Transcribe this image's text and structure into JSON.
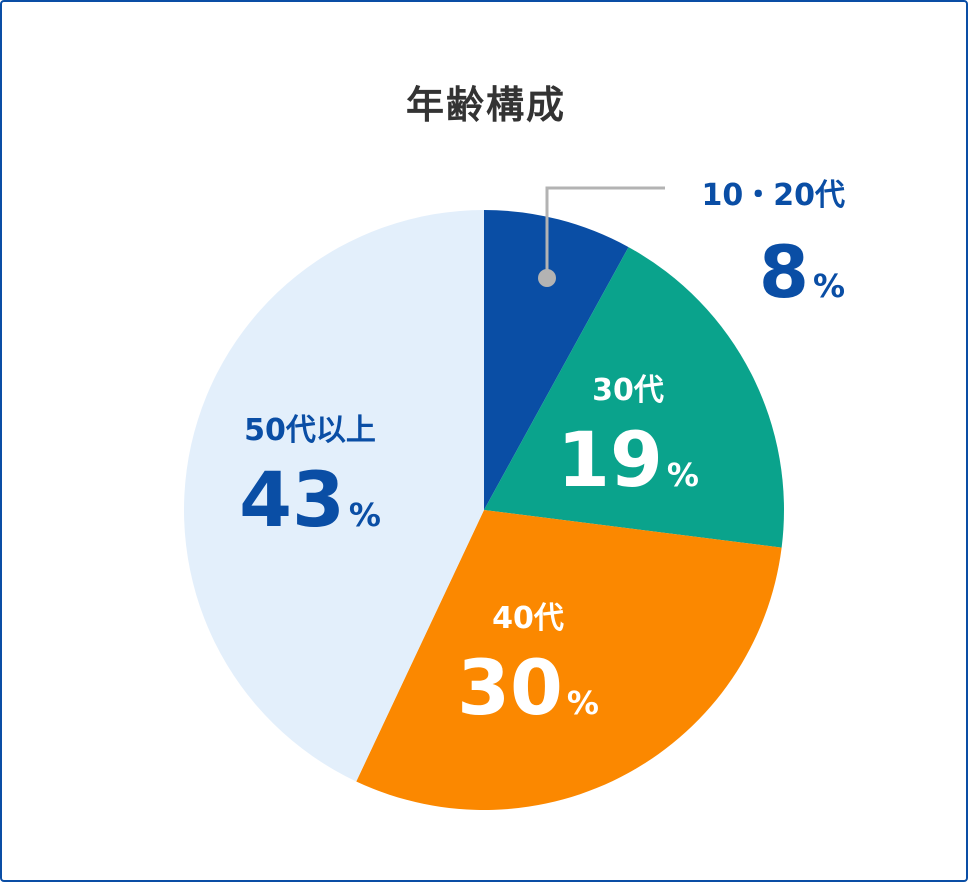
{
  "chart_data": {
    "type": "pie",
    "title": "年齢構成",
    "unit": "%",
    "slices": [
      {
        "label": "10・20代",
        "value": 8,
        "color": "#0a4ea5",
        "label_color": "#0a4ea5"
      },
      {
        "label": "30代",
        "value": 19,
        "color": "#0aa38c",
        "label_color": "#ffffff"
      },
      {
        "label": "40代",
        "value": 30,
        "color": "#fb8800",
        "label_color": "#ffffff"
      },
      {
        "label": "50代以上",
        "value": 43,
        "color": "#e3effb",
        "label_color": "#0a4ea5"
      }
    ]
  }
}
